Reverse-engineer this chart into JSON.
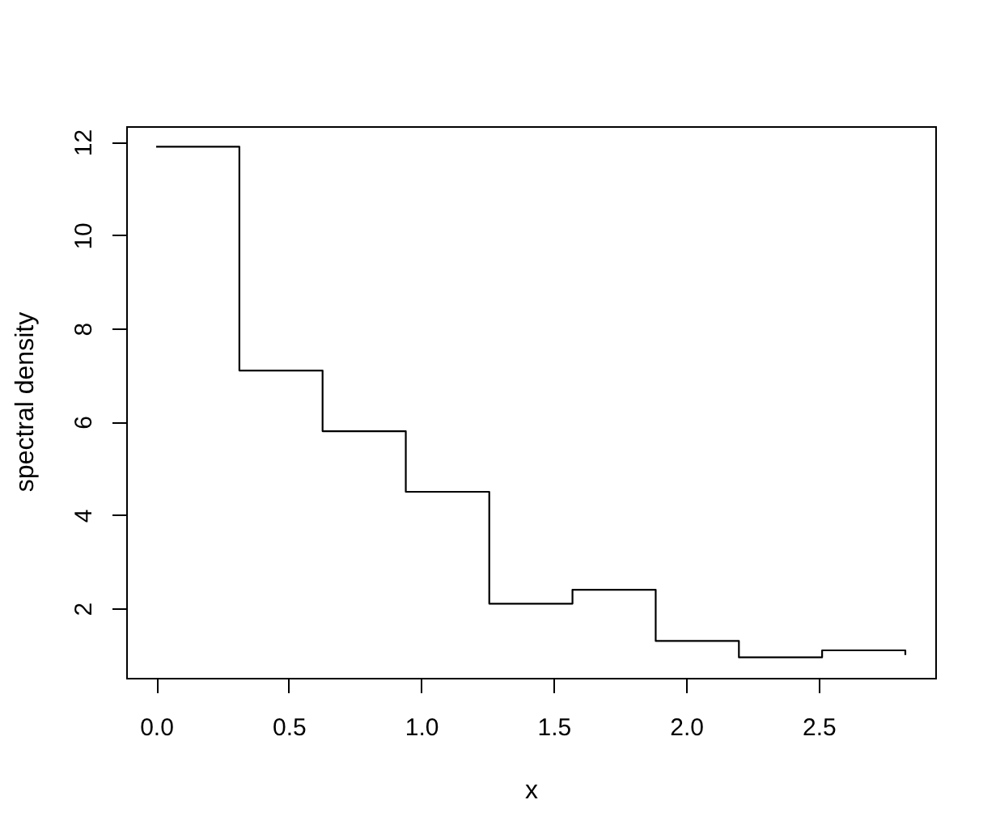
{
  "chart_data": {
    "type": "step",
    "xlabel": "x",
    "ylabel": "spectral density",
    "x": [
      0,
      0.314,
      0.628,
      0.942,
      1.257,
      1.571,
      1.885,
      2.199,
      2.513,
      2.827
    ],
    "values": [
      11.9,
      7.1,
      5.8,
      4.5,
      2.1,
      2.4,
      1.3,
      0.95,
      1.1,
      1.0
    ],
    "color": "#000000",
    "xlim": [
      -0.113,
      2.94
    ],
    "ylim": [
      0.51,
      12.34
    ],
    "xticks": [
      {
        "value": 0,
        "label": "0.0"
      },
      0.5,
      {
        "value": 1,
        "label": "1.0"
      },
      1.5,
      {
        "value": 2,
        "label": "2.0"
      },
      2.5
    ],
    "yticks": [
      2,
      4,
      6,
      8,
      10,
      12
    ]
  }
}
